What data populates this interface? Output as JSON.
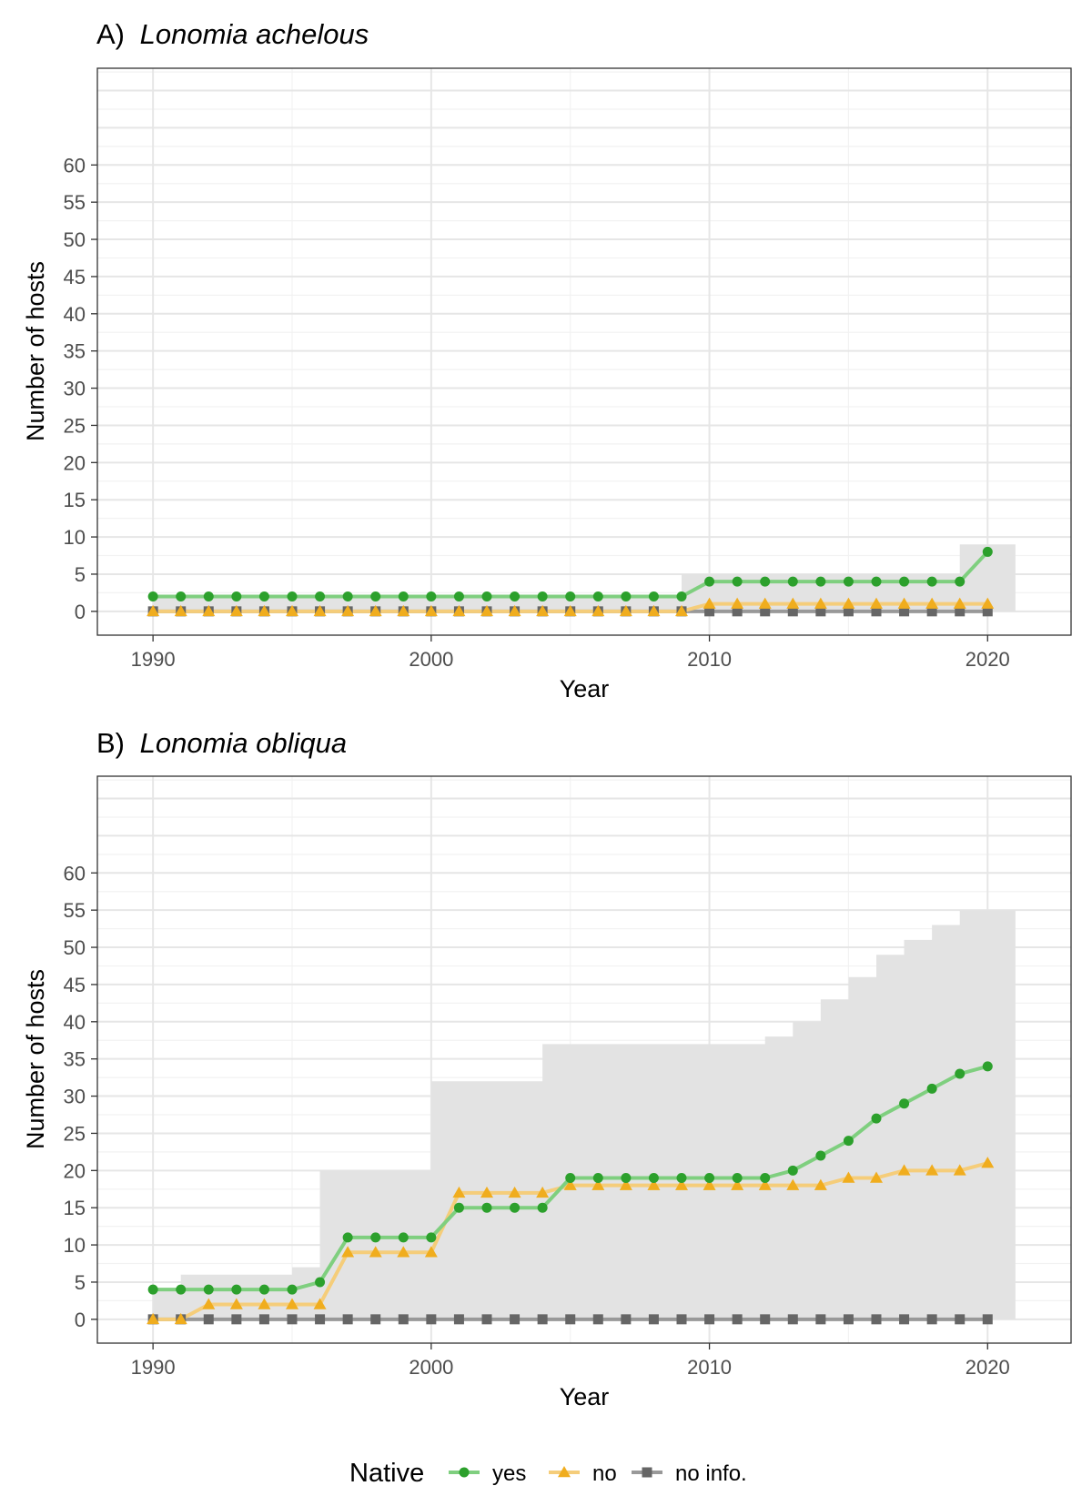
{
  "legend": {
    "title": "Native",
    "entries": [
      {
        "label": "yes",
        "color": "#2ca02c",
        "shape": "circle"
      },
      {
        "label": "no",
        "color": "#f0ad1e",
        "shape": "triangle"
      },
      {
        "label": "no info.",
        "color": "#666666",
        "shape": "square"
      }
    ],
    "position": "bottom"
  },
  "chart_data": [
    {
      "type": "line",
      "title_prefix": "A)",
      "title_italic": "Lonomia achelous",
      "xlabel": "Year",
      "ylabel": "Number of hosts",
      "xlim": [
        1988,
        2023
      ],
      "ylim": [
        -3.2,
        73
      ],
      "xticks": [
        1990,
        2000,
        2010,
        2020
      ],
      "yticks": [
        0,
        5,
        10,
        15,
        20,
        25,
        30,
        35,
        40,
        45,
        50,
        55,
        60
      ],
      "grid": true,
      "x": [
        1990,
        1991,
        1992,
        1993,
        1994,
        1995,
        1996,
        1997,
        1998,
        1999,
        2000,
        2001,
        2002,
        2003,
        2004,
        2005,
        2006,
        2007,
        2008,
        2009,
        2010,
        2011,
        2012,
        2013,
        2014,
        2015,
        2016,
        2017,
        2018,
        2019,
        2020
      ],
      "series": [
        {
          "name": "yes",
          "values": [
            2,
            2,
            2,
            2,
            2,
            2,
            2,
            2,
            2,
            2,
            2,
            2,
            2,
            2,
            2,
            2,
            2,
            2,
            2,
            2,
            4,
            4,
            4,
            4,
            4,
            4,
            4,
            4,
            4,
            4,
            8
          ]
        },
        {
          "name": "no",
          "values": [
            0,
            0,
            0,
            0,
            0,
            0,
            0,
            0,
            0,
            0,
            0,
            0,
            0,
            0,
            0,
            0,
            0,
            0,
            0,
            0,
            1,
            1,
            1,
            1,
            1,
            1,
            1,
            1,
            1,
            1,
            1
          ]
        },
        {
          "name": "no info.",
          "values": [
            0,
            0,
            0,
            0,
            0,
            0,
            0,
            0,
            0,
            0,
            0,
            0,
            0,
            0,
            0,
            0,
            0,
            0,
            0,
            0,
            0,
            0,
            0,
            0,
            0,
            0,
            0,
            0,
            0,
            0,
            0
          ]
        }
      ],
      "total_area": [
        2,
        2,
        2,
        2,
        2,
        2,
        2,
        2,
        2,
        2,
        2,
        2,
        2,
        2,
        2,
        2,
        2,
        2,
        2,
        5,
        5,
        5,
        5,
        5,
        5,
        5,
        5,
        5,
        5,
        9,
        9
      ]
    },
    {
      "type": "line",
      "title_prefix": "B)",
      "title_italic": "Lonomia obliqua",
      "xlabel": "Year",
      "ylabel": "Number of hosts",
      "xlim": [
        1988,
        2023
      ],
      "ylim": [
        -3.2,
        73
      ],
      "xticks": [
        1990,
        2000,
        2010,
        2020
      ],
      "yticks": [
        0,
        5,
        10,
        15,
        20,
        25,
        30,
        35,
        40,
        45,
        50,
        55,
        60
      ],
      "grid": true,
      "x": [
        1990,
        1991,
        1992,
        1993,
        1994,
        1995,
        1996,
        1997,
        1998,
        1999,
        2000,
        2001,
        2002,
        2003,
        2004,
        2005,
        2006,
        2007,
        2008,
        2009,
        2010,
        2011,
        2012,
        2013,
        2014,
        2015,
        2016,
        2017,
        2018,
        2019,
        2020
      ],
      "series": [
        {
          "name": "yes",
          "values": [
            4,
            4,
            4,
            4,
            4,
            4,
            5,
            11,
            11,
            11,
            11,
            15,
            15,
            15,
            15,
            19,
            19,
            19,
            19,
            19,
            19,
            19,
            19,
            20,
            22,
            24,
            27,
            29,
            31,
            33,
            34
          ]
        },
        {
          "name": "no",
          "values": [
            0,
            0,
            2,
            2,
            2,
            2,
            2,
            9,
            9,
            9,
            9,
            17,
            17,
            17,
            17,
            18,
            18,
            18,
            18,
            18,
            18,
            18,
            18,
            18,
            18,
            19,
            19,
            20,
            20,
            20,
            21
          ]
        },
        {
          "name": "no info.",
          "values": [
            0,
            0,
            0,
            0,
            0,
            0,
            0,
            0,
            0,
            0,
            0,
            0,
            0,
            0,
            0,
            0,
            0,
            0,
            0,
            0,
            0,
            0,
            0,
            0,
            0,
            0,
            0,
            0,
            0,
            0,
            0
          ]
        }
      ],
      "total_area": [
        4,
        6,
        6,
        6,
        6,
        7,
        20,
        20,
        20,
        20,
        32,
        32,
        32,
        32,
        37,
        37,
        37,
        37,
        37,
        37,
        37,
        37,
        38,
        40,
        43,
        46,
        49,
        51,
        53,
        55,
        55
      ]
    }
  ]
}
